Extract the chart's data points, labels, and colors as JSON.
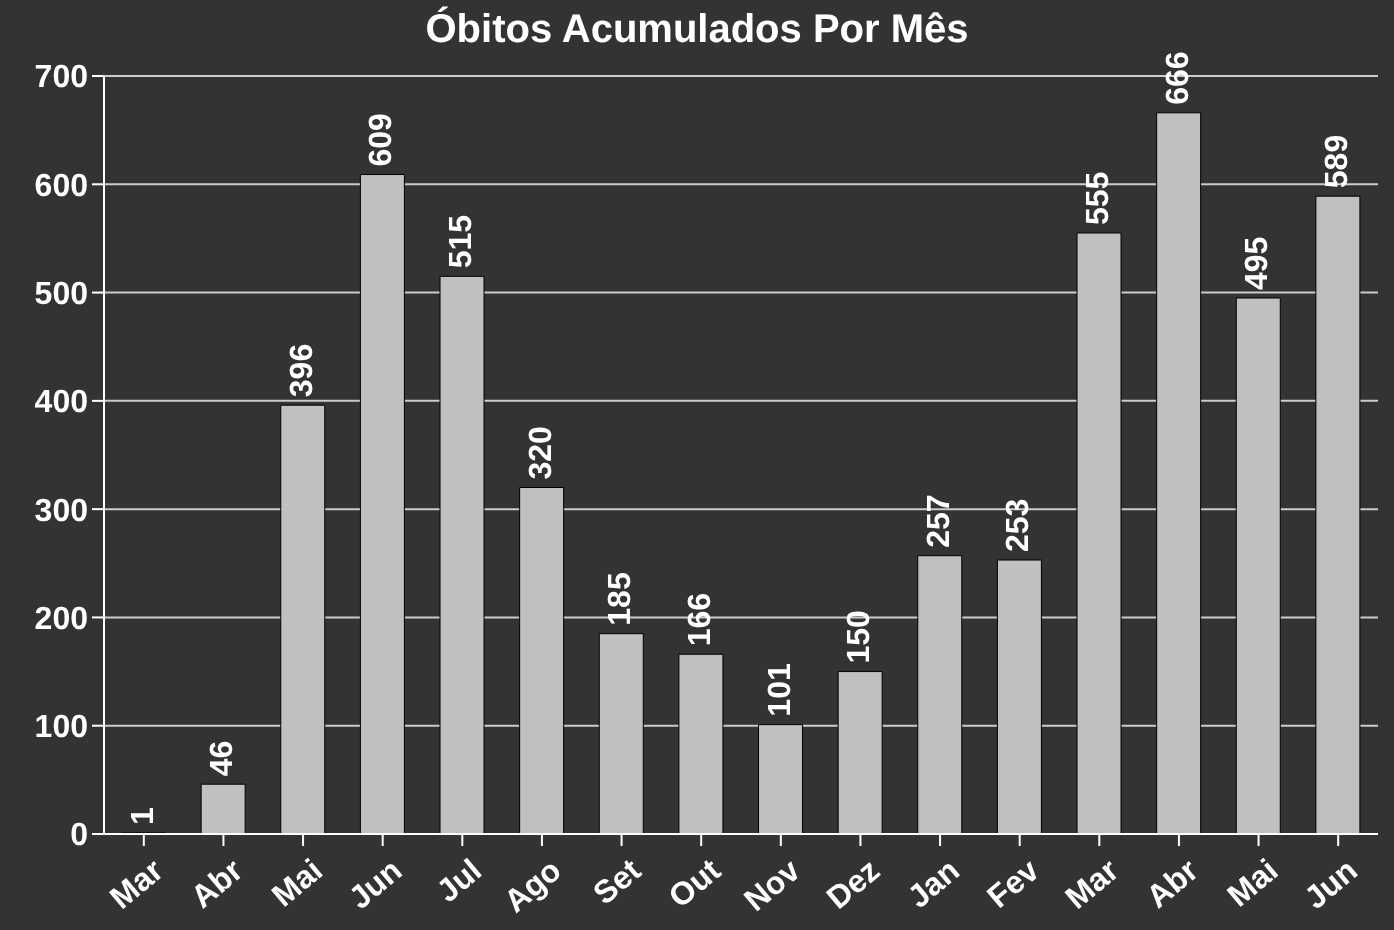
{
  "chart_data": {
    "type": "bar",
    "title": "Óbitos Acumulados Por Mês",
    "categories": [
      "Mar",
      "Abr",
      "Mai",
      "Jun",
      "Jul",
      "Ago",
      "Set",
      "Out",
      "Nov",
      "Dez",
      "Jan",
      "Fev",
      "Mar",
      "Abr",
      "Mai",
      "Jun"
    ],
    "values": [
      1,
      46,
      396,
      609,
      515,
      320,
      185,
      166,
      101,
      150,
      257,
      253,
      555,
      666,
      495,
      589
    ],
    "color": "#c0c0c0",
    "ylim": [
      0,
      700
    ],
    "yticks": [
      0,
      100,
      200,
      300,
      400,
      500,
      600,
      700
    ],
    "grid": "y",
    "data_labels": true
  }
}
